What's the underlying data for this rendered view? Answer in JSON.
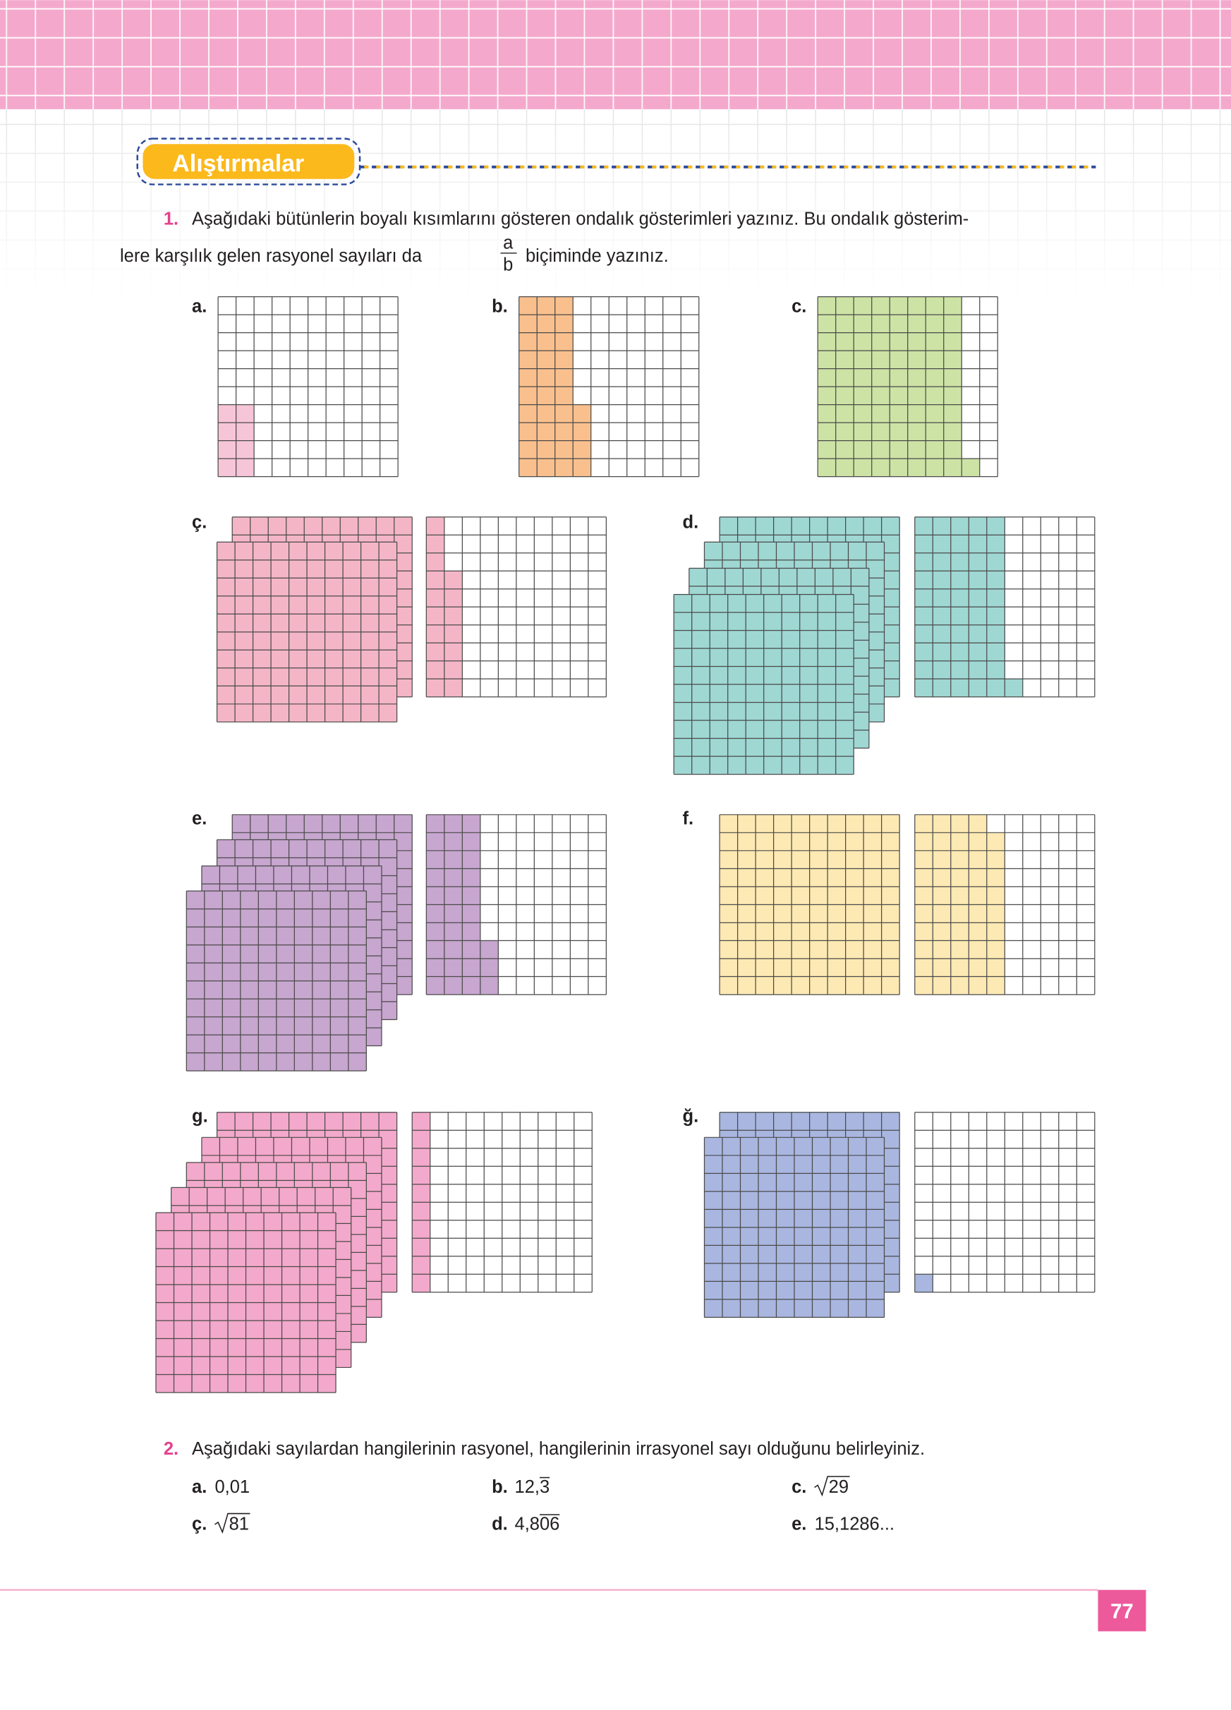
{
  "header": {
    "title": "Alıştırmalar"
  },
  "question1": {
    "number": "1.",
    "line1": "Aşağıdaki bütünlerin boyalı kısımlarını gösteren ondalık gösterimleri yazınız. Bu ondalık gösterim-",
    "line2_before": "lere karşılık gelen rasyonel sayıları da",
    "fraction_numerator": "a",
    "fraction_denominator": "b",
    "line2_after": "biçiminde yazınız.",
    "figures": [
      "a.",
      "b.",
      "c.",
      "ç.",
      "d.",
      "e.",
      "f.",
      "g.",
      "ğ."
    ]
  },
  "question2": {
    "number": "2.",
    "text": "Aşağıdaki sayılardan hangilerinin rasyonel, hangilerinin irrasyonel sayı olduğunu belirleyiniz.",
    "items": [
      {
        "label": "a.",
        "value": "0,01"
      },
      {
        "label": "b.",
        "value": "12,",
        "overline": "3"
      },
      {
        "label": "c.",
        "sqrt": "29"
      },
      {
        "label": "ç.",
        "sqrt": "81"
      },
      {
        "label": "d.",
        "value": "4,8",
        "overline": "06"
      },
      {
        "label": "e.",
        "value": "15,1286..."
      }
    ]
  },
  "footer": {
    "page_number": "77"
  }
}
